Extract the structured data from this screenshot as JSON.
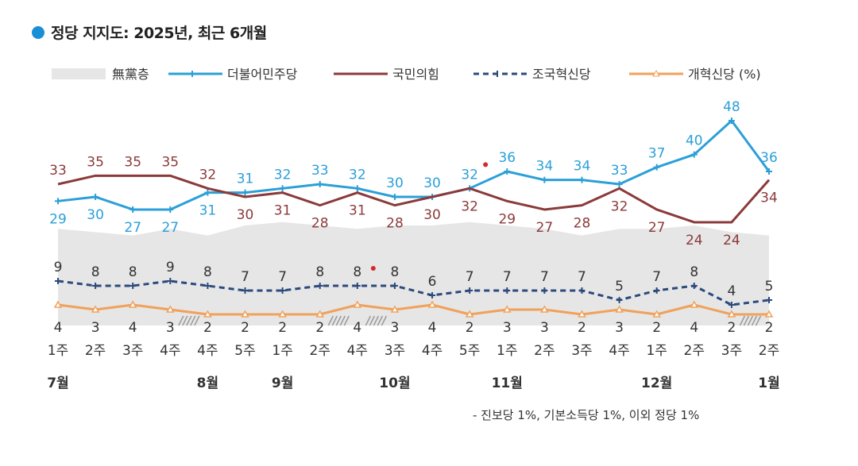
{
  "title": "정당 지지도: 2025년, 최근 6개월",
  "footnote": "- 진보당 1%, 기본소득당 1%, 이외 정당 1%",
  "colors": {
    "title_dot": "#1a8fd6",
    "noparty": "#e6e6e6",
    "democratic": "#2b9fd8",
    "ppp": "#8b3a3a",
    "rebuild": "#2c4a7c",
    "reform": "#f0a15a",
    "highlight": "#d62828"
  },
  "chart_data": {
    "type": "line",
    "x_week_labels": [
      "1주",
      "2주",
      "3주",
      "4주",
      "4주",
      "5주",
      "1주",
      "2주",
      "4주",
      "3주",
      "4주",
      "5주",
      "1주",
      "2주",
      "3주",
      "4주",
      "1주",
      "2주",
      "3주",
      "2주"
    ],
    "month_labels": [
      {
        "label": "7월",
        "index": 0
      },
      {
        "label": "8월",
        "index": 4
      },
      {
        "label": "9월",
        "index": 6
      },
      {
        "label": "10월",
        "index": 9
      },
      {
        "label": "11월",
        "index": 12
      },
      {
        "label": "12월",
        "index": 16
      },
      {
        "label": "1월",
        "index": 19
      }
    ],
    "legend_unit": "(%)",
    "series": [
      {
        "key": "democratic",
        "name": "더불어민주당",
        "style": "solid-cross",
        "values": [
          29,
          30,
          27,
          27,
          31,
          31,
          32,
          33,
          32,
          30,
          30,
          32,
          36,
          34,
          34,
          33,
          37,
          40,
          48,
          36
        ]
      },
      {
        "key": "ppp",
        "name": "국민의힘",
        "style": "solid",
        "values": [
          33,
          35,
          35,
          35,
          32,
          30,
          31,
          28,
          31,
          28,
          30,
          32,
          29,
          27,
          28,
          32,
          27,
          24,
          24,
          34
        ]
      },
      {
        "key": "rebuild",
        "name": "조국혁신당",
        "style": "dashed-cross",
        "values": [
          9,
          8,
          8,
          9,
          8,
          7,
          7,
          8,
          8,
          8,
          6,
          7,
          7,
          7,
          7,
          5,
          7,
          8,
          4,
          5
        ]
      },
      {
        "key": "reform",
        "name": "개혁신당",
        "style": "solid-triangle",
        "values": [
          4,
          3,
          4,
          3,
          2,
          2,
          2,
          2,
          4,
          3,
          4,
          2,
          3,
          3,
          2,
          3,
          2,
          4,
          2,
          2
        ]
      }
    ],
    "noparty": {
      "name": "無黨층",
      "values": [
        29,
        28,
        27,
        29,
        27,
        30,
        31,
        30,
        29,
        30,
        30,
        31,
        30,
        29,
        27,
        29,
        29,
        30,
        28,
        27
      ]
    },
    "highlight_dots": [
      {
        "series": "democratic",
        "index": 11
      },
      {
        "series": "rebuild",
        "index": 8
      }
    ],
    "survey_gaps": [
      3,
      7,
      8,
      18
    ]
  }
}
